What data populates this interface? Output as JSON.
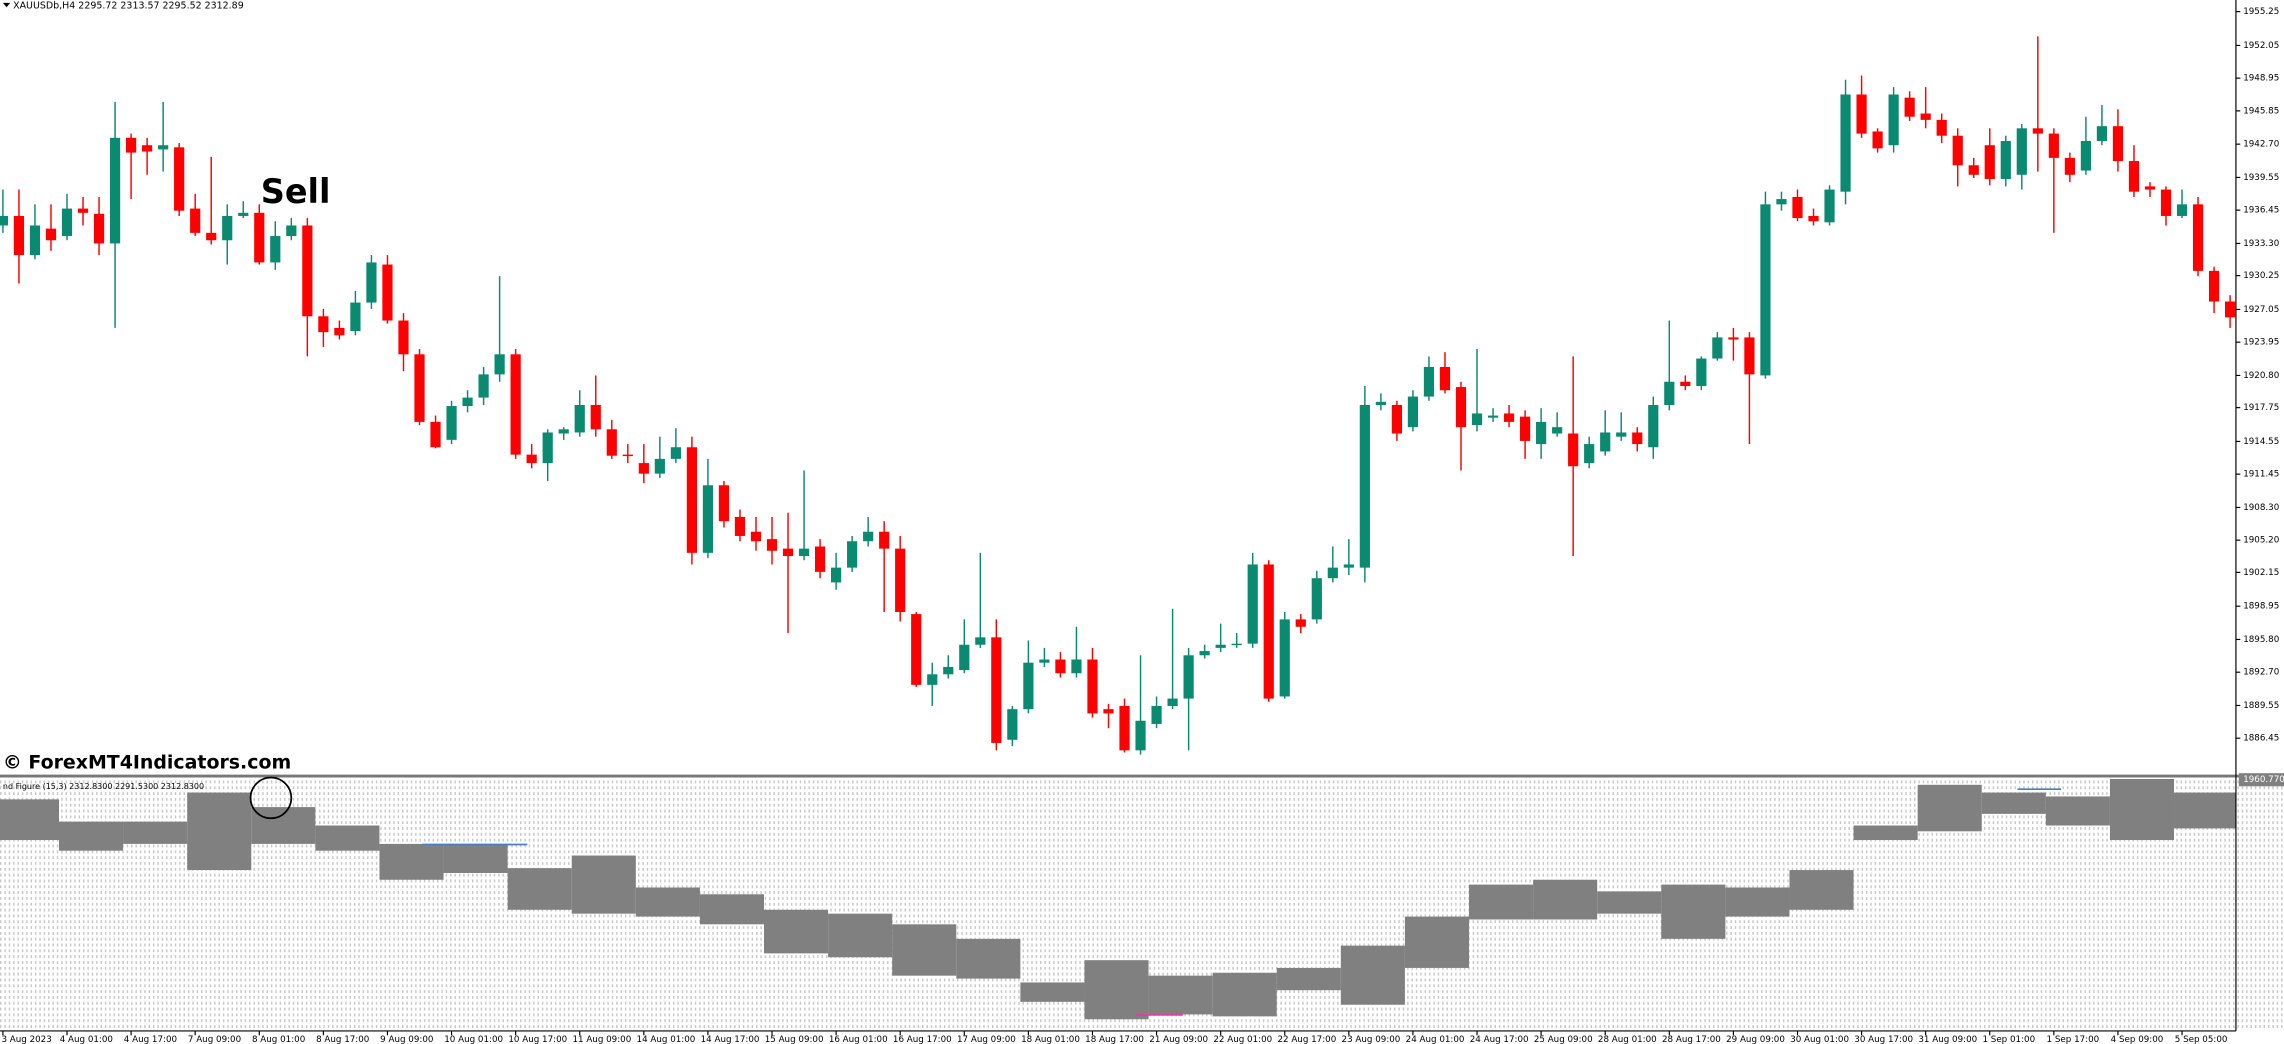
{
  "chart_data": {
    "type": "candlestick",
    "header": "XAUUSDb,H4  2295.72 2313.57 2295.52 2312.89",
    "annotations": [
      "Sell",
      "© ForexMT4Indicators.com"
    ],
    "up_color": "#0b8a72",
    "down_color": "#ff0000",
    "ylim": [
      1883.0,
      1956.35
    ],
    "yticks": [
      1955.25,
      1952.05,
      1948.95,
      1945.85,
      {
        "value": 1942.7,
        "label": "1942.70"
      },
      1939.55,
      1936.45,
      {
        "value": 1933.3,
        "label": "1933.30"
      },
      1930.25,
      1927.05,
      1923.95,
      {
        "value": 1920.8,
        "label": "1920.80"
      },
      1917.75,
      1914.55,
      1911.45,
      {
        "value": 1908.3,
        "label": "1908.30"
      },
      {
        "value": 1905.2,
        "label": "1905.20"
      },
      1902.15,
      1898.95,
      {
        "value": 1895.8,
        "label": "1895.80"
      },
      {
        "value": 1892.7,
        "label": "1892.70"
      },
      1889.55,
      1886.45
    ],
    "categories": [
      "3 Aug 2023",
      null,
      null,
      null,
      "4 Aug 01:00",
      null,
      null,
      null,
      "4 Aug 17:00",
      null,
      null,
      null,
      "7 Aug 09:00",
      null,
      null,
      null,
      "8 Aug 01:00",
      null,
      null,
      null,
      "8 Aug 17:00",
      null,
      null,
      null,
      "9 Aug 09:00",
      null,
      null,
      null,
      "10 Aug 01:00",
      null,
      null,
      null,
      "10 Aug 17:00",
      null,
      null,
      null,
      "11 Aug 09:00",
      null,
      null,
      null,
      "14 Aug 01:00",
      null,
      null,
      null,
      "14 Aug 17:00",
      null,
      null,
      null,
      "15 Aug 09:00",
      null,
      null,
      null,
      "16 Aug 01:00",
      null,
      null,
      null,
      "16 Aug 17:00",
      null,
      null,
      null,
      "17 Aug 09:00",
      null,
      null,
      null,
      "18 Aug 01:00",
      null,
      null,
      null,
      "18 Aug 17:00",
      null,
      null,
      null,
      "21 Aug 09:00",
      null,
      null,
      null,
      "22 Aug 01:00",
      null,
      null,
      null,
      "22 Aug 17:00",
      null,
      null,
      null,
      "23 Aug 09:00",
      null,
      null,
      null,
      "24 Aug 01:00",
      null,
      null,
      null,
      "24 Aug 17:00",
      null,
      null,
      null,
      "25 Aug 09:00",
      null,
      null,
      null,
      "28 Aug 01:00",
      null,
      null,
      null,
      "28 Aug 17:00",
      null,
      null,
      null,
      "29 Aug 09:00",
      null,
      null,
      null,
      "30 Aug 01:00",
      null,
      null,
      null,
      "30 Aug 17:00",
      null,
      null,
      null,
      "31 Aug 09:00",
      null,
      null,
      null,
      "1 Sep 01:00",
      null,
      null,
      null,
      "1 Sep 17:00",
      null,
      null,
      null,
      "4 Sep 09:00",
      null,
      null,
      null,
      "5 Sep 05:00",
      null,
      null,
      null
    ],
    "candles": [
      [
        1935.0,
        1938.4,
        1934.3,
        1935.9
      ],
      [
        1935.9,
        1938.4,
        1929.5,
        1932.2
      ],
      [
        1932.2,
        1937.0,
        1931.8,
        1935.0
      ],
      [
        1934.7,
        1937.0,
        1932.6,
        1933.6
      ],
      [
        1934.0,
        1938.0,
        1933.6,
        1936.6
      ],
      [
        1936.6,
        1937.7,
        1935.0,
        1936.2
      ],
      [
        1936.1,
        1937.7,
        1932.2,
        1933.3
      ],
      [
        1933.3,
        1946.7,
        1925.3,
        1943.3
      ],
      [
        1943.3,
        1943.7,
        1937.5,
        1941.9
      ],
      [
        1942.6,
        1943.3,
        1939.8,
        1942.0
      ],
      [
        1942.2,
        1946.7,
        1940.1,
        1942.6
      ],
      [
        1942.4,
        1942.8,
        1935.9,
        1936.4
      ],
      [
        1936.6,
        1938.0,
        1934.0,
        1934.3
      ],
      [
        1934.3,
        1941.5,
        1933.2,
        1933.6
      ],
      [
        1933.6,
        1937.0,
        1931.3,
        1935.9
      ],
      [
        1935.9,
        1937.3,
        1935.7,
        1936.2
      ],
      [
        1936.2,
        1937.0,
        1931.3,
        1931.5
      ],
      [
        1931.5,
        1935.4,
        1930.8,
        1934.0
      ],
      [
        1934.0,
        1935.7,
        1933.6,
        1935.0
      ],
      [
        1935.0,
        1935.7,
        1922.6,
        1926.4
      ],
      [
        1926.4,
        1927.1,
        1923.5,
        1924.9
      ],
      [
        1925.3,
        1926.0,
        1924.2,
        1924.6
      ],
      [
        1925.0,
        1928.8,
        1924.6,
        1927.7
      ],
      [
        1927.7,
        1932.2,
        1927.1,
        1931.5
      ],
      [
        1931.3,
        1932.2,
        1925.7,
        1926.0
      ],
      [
        1926.0,
        1926.7,
        1921.2,
        1922.8
      ],
      [
        1922.8,
        1923.3,
        1916.1,
        1916.4
      ],
      [
        1916.4,
        1917.0,
        1913.9,
        1914.0
      ],
      [
        1914.7,
        1918.4,
        1914.3,
        1917.9
      ],
      [
        1917.9,
        1919.4,
        1917.3,
        1918.7
      ],
      [
        1918.7,
        1921.6,
        1918.0,
        1920.9
      ],
      [
        1920.9,
        1930.2,
        1920.2,
        1922.8
      ],
      [
        1922.8,
        1923.3,
        1912.9,
        1913.3
      ],
      [
        1913.3,
        1914.3,
        1912.0,
        1912.5
      ],
      [
        1912.5,
        1915.7,
        1910.8,
        1915.4
      ],
      [
        1915.3,
        1915.9,
        1914.7,
        1915.7
      ],
      [
        1915.4,
        1919.4,
        1915.0,
        1918.0
      ],
      [
        1918.0,
        1920.8,
        1915.0,
        1915.7
      ],
      [
        1915.7,
        1916.6,
        1912.9,
        1913.2
      ],
      [
        1913.3,
        1914.3,
        1912.5,
        1913.2
      ],
      [
        1912.5,
        1914.3,
        1910.6,
        1911.5
      ],
      [
        1911.5,
        1915.0,
        1911.1,
        1912.9
      ],
      [
        1912.9,
        1915.8,
        1912.5,
        1914.0
      ],
      [
        1914.0,
        1915.0,
        1902.9,
        1904.0
      ],
      [
        1904.0,
        1912.9,
        1903.5,
        1910.4
      ],
      [
        1910.4,
        1910.8,
        1906.4,
        1907.0
      ],
      [
        1907.4,
        1908.1,
        1905.1,
        1905.6
      ],
      [
        1906.0,
        1907.4,
        1904.2,
        1905.1
      ],
      [
        1905.3,
        1907.4,
        1902.9,
        1904.2
      ],
      [
        1904.4,
        1907.8,
        1896.4,
        1903.7
      ],
      [
        1903.7,
        1911.8,
        1903.3,
        1904.4
      ],
      [
        1904.6,
        1905.3,
        1901.6,
        1902.2
      ],
      [
        1901.2,
        1904.0,
        1900.5,
        1902.6
      ],
      [
        1902.6,
        1905.6,
        1902.2,
        1905.1
      ],
      [
        1905.1,
        1907.4,
        1904.6,
        1906.0
      ],
      [
        1906.0,
        1907.0,
        1898.4,
        1904.4
      ],
      [
        1904.4,
        1905.6,
        1897.5,
        1898.4
      ],
      [
        1898.2,
        1898.4,
        1891.3,
        1891.5
      ],
      [
        1891.5,
        1893.6,
        1889.5,
        1892.5
      ],
      [
        1892.5,
        1894.3,
        1892.1,
        1893.2
      ],
      [
        1892.9,
        1897.7,
        1892.6,
        1895.3
      ],
      [
        1895.3,
        1904.0,
        1895.0,
        1896.0
      ],
      [
        1896.0,
        1897.7,
        1885.3,
        1886.0
      ],
      [
        1886.3,
        1889.5,
        1885.7,
        1889.2
      ],
      [
        1889.2,
        1895.7,
        1888.8,
        1893.6
      ],
      [
        1893.6,
        1895.0,
        1893.2,
        1893.9
      ],
      [
        1893.9,
        1894.6,
        1892.2,
        1892.6
      ],
      [
        1892.6,
        1897.0,
        1892.2,
        1893.9
      ],
      [
        1893.9,
        1895.0,
        1888.4,
        1888.8
      ],
      [
        1889.2,
        1889.7,
        1887.4,
        1888.8
      ],
      [
        1889.5,
        1890.2,
        1885.1,
        1885.3
      ],
      [
        1885.3,
        1894.3,
        1884.9,
        1888.1
      ],
      [
        1887.8,
        1890.4,
        1887.4,
        1889.5
      ],
      [
        1889.5,
        1898.7,
        1889.2,
        1890.2
      ],
      [
        1890.2,
        1895.0,
        1885.3,
        1894.3
      ],
      [
        1894.3,
        1895.3,
        1894.0,
        1894.7
      ],
      [
        1895.0,
        1897.3,
        1894.6,
        1895.3
      ],
      [
        1895.3,
        1896.4,
        1895.0,
        1895.4
      ],
      [
        1895.4,
        1904.0,
        1895.0,
        1902.9
      ],
      [
        1902.9,
        1903.3,
        1889.9,
        1890.2
      ],
      [
        1890.4,
        1898.4,
        1890.2,
        1897.7
      ],
      [
        1897.7,
        1898.2,
        1896.4,
        1897.0
      ],
      [
        1897.7,
        1902.3,
        1897.3,
        1901.6
      ],
      [
        1901.6,
        1904.6,
        1901.2,
        1902.6
      ],
      [
        1902.6,
        1905.3,
        1901.9,
        1902.9
      ],
      [
        1902.6,
        1919.8,
        1901.2,
        1918.0
      ],
      [
        1918.0,
        1919.1,
        1917.5,
        1918.3
      ],
      [
        1918.0,
        1918.4,
        1914.6,
        1915.3
      ],
      [
        1915.9,
        1919.4,
        1915.5,
        1918.8
      ],
      [
        1918.8,
        1922.6,
        1918.4,
        1921.6
      ],
      [
        1921.6,
        1923.0,
        1919.1,
        1919.4
      ],
      [
        1919.7,
        1920.2,
        1911.8,
        1915.9
      ],
      [
        1916.1,
        1923.3,
        1915.5,
        1917.2
      ],
      [
        1916.8,
        1917.7,
        1916.4,
        1917.0
      ],
      [
        1917.2,
        1918.0,
        1915.9,
        1916.4
      ],
      [
        1916.9,
        1917.5,
        1912.9,
        1914.6
      ],
      [
        1914.3,
        1917.7,
        1912.9,
        1916.4
      ],
      [
        1915.3,
        1917.3,
        1915.0,
        1915.9
      ],
      [
        1915.3,
        1922.6,
        1903.7,
        1912.2
      ],
      [
        1912.5,
        1915.0,
        1912.0,
        1914.3
      ],
      [
        1913.6,
        1917.5,
        1913.2,
        1915.4
      ],
      [
        1915.0,
        1917.3,
        1914.6,
        1915.4
      ],
      [
        1915.4,
        1915.9,
        1913.6,
        1914.3
      ],
      [
        1914.0,
        1918.8,
        1912.9,
        1918.0
      ],
      [
        1918.0,
        1926.0,
        1917.5,
        1920.2
      ],
      [
        1920.2,
        1920.8,
        1919.4,
        1919.8
      ],
      [
        1919.8,
        1922.6,
        1919.4,
        1922.4
      ],
      [
        1922.4,
        1924.9,
        1922.2,
        1924.4
      ],
      [
        1924.4,
        1925.3,
        1922.2,
        1924.2
      ],
      [
        1924.4,
        1924.9,
        1914.3,
        1920.9
      ],
      [
        1920.8,
        1938.2,
        1920.5,
        1937.0
      ],
      [
        1937.0,
        1938.2,
        1936.4,
        1937.5
      ],
      [
        1937.7,
        1938.4,
        1935.4,
        1935.7
      ],
      [
        1935.9,
        1936.6,
        1935.0,
        1935.4
      ],
      [
        1935.3,
        1938.8,
        1935.0,
        1938.4
      ],
      [
        1938.2,
        1948.8,
        1937.0,
        1947.4
      ],
      [
        1947.4,
        1949.2,
        1943.3,
        1943.7
      ],
      [
        1943.9,
        1944.2,
        1941.9,
        1942.3
      ],
      [
        1942.6,
        1948.1,
        1941.9,
        1947.4
      ],
      [
        1947.1,
        1947.7,
        1944.9,
        1945.3
      ],
      [
        1945.6,
        1948.1,
        1944.2,
        1945.0
      ],
      [
        1945.0,
        1945.6,
        1942.8,
        1943.5
      ],
      [
        1943.5,
        1944.2,
        1938.7,
        1940.7
      ],
      [
        1940.7,
        1941.4,
        1939.5,
        1939.8
      ],
      [
        1942.6,
        1944.2,
        1938.8,
        1939.4
      ],
      [
        1939.4,
        1943.5,
        1938.7,
        1943.0
      ],
      [
        1939.8,
        1944.6,
        1938.4,
        1944.2
      ],
      [
        1944.2,
        1952.9,
        1940.1,
        1943.7
      ],
      [
        1943.7,
        1944.2,
        1934.3,
        1941.4
      ],
      [
        1941.4,
        1941.9,
        1939.1,
        1939.8
      ],
      [
        1940.2,
        1945.3,
        1939.8,
        1943.0
      ],
      [
        1943.0,
        1946.4,
        1942.6,
        1944.4
      ],
      [
        1944.4,
        1946.0,
        1940.1,
        1941.1
      ],
      [
        1941.1,
        1942.6,
        1937.7,
        1938.2
      ],
      [
        1938.7,
        1939.1,
        1937.7,
        1938.4
      ],
      [
        1938.4,
        1938.7,
        1935.0,
        1935.9
      ],
      [
        1935.9,
        1938.4,
        1935.7,
        1937.0
      ],
      [
        1937.0,
        1937.7,
        1930.2,
        1930.7
      ],
      [
        1930.7,
        1931.1,
        1926.7,
        1927.8
      ],
      [
        1927.8,
        1928.4,
        1925.3,
        1926.3
      ]
    ],
    "indicator": {
      "label": "nd Figure (15,3) 2312.8300 2291.5300 2312.8300",
      "value_label": "1960.770",
      "color": "#808080",
      "ylim": [
        1935,
        1961
      ],
      "upper": [
        1958.9,
        1956.6,
        1956.6,
        1959.6,
        1958.1,
        1956.2,
        1954.3,
        1954.3,
        1951.8,
        1953.1,
        1949.8,
        1949.1,
        1947.5,
        1947.1,
        1946.0,
        1944.5,
        1940.0,
        1942.3,
        1940.7,
        1941.0,
        1941.5,
        1943.8,
        1946.8,
        1950.1,
        1950.6,
        1949.4,
        1950.1,
        1949.8,
        1951.6,
        1956.2,
        1960.4,
        1959.6,
        1959.2,
        1961.0,
        1959.6
      ],
      "lower": [
        1954.7,
        1953.6,
        1954.3,
        1951.6,
        1954.3,
        1953.6,
        1950.6,
        1951.3,
        1947.5,
        1947.1,
        1946.8,
        1946.0,
        1943.0,
        1942.6,
        1940.7,
        1940.4,
        1938.0,
        1936.2,
        1936.7,
        1936.5,
        1939.2,
        1937.7,
        1941.5,
        1946.5,
        1946.5,
        1947.1,
        1944.5,
        1946.8,
        1947.5,
        1954.7,
        1955.6,
        1957.4,
        1956.2,
        1954.7,
        1955.9
      ]
    }
  }
}
